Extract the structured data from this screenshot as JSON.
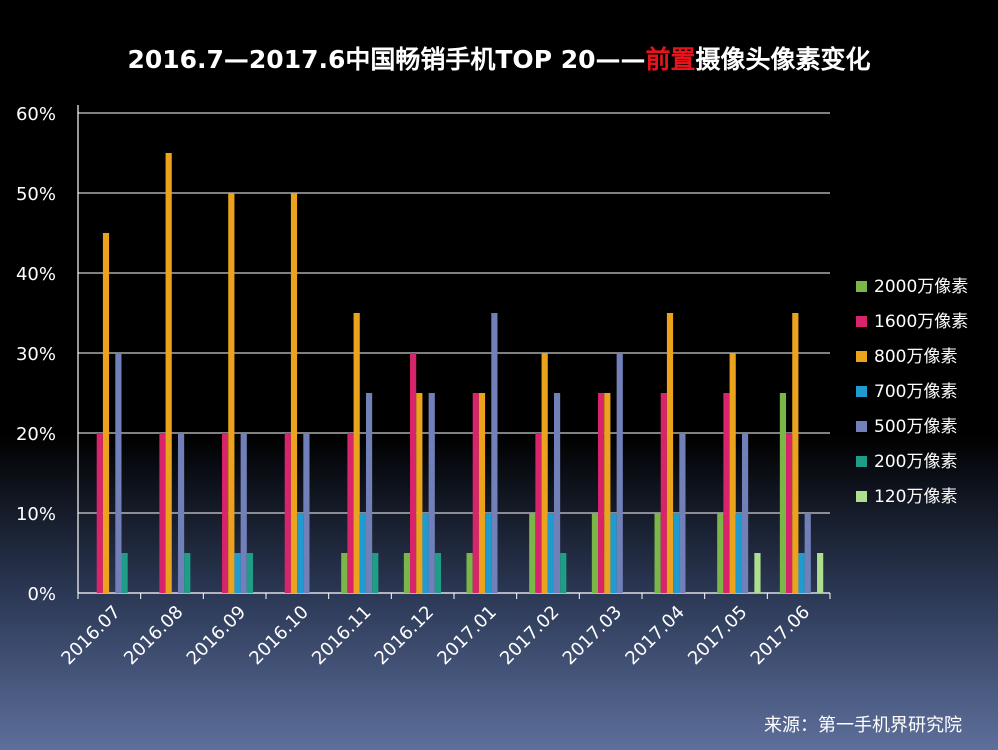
{
  "title": {
    "part1": "2016.7—2017.6中国畅销手机TOP 20——",
    "highlight": "前置",
    "part2": "摄像头像素变化",
    "highlight_color": "#e8141c"
  },
  "source": "来源：第一手机界研究院",
  "chart_data": {
    "type": "bar",
    "categories": [
      "2016.07",
      "2016.08",
      "2016.09",
      "2016.10",
      "2016.11",
      "2016.12",
      "2017.01",
      "2017.02",
      "2017.03",
      "2017.04",
      "2017.05",
      "2017.06"
    ],
    "y_ticks": [
      "0%",
      "10%",
      "20%",
      "30%",
      "40%",
      "50%",
      "60%"
    ],
    "ylim": [
      0,
      60
    ],
    "grid": true,
    "legend_position": "right",
    "series": [
      {
        "name": "2000万像素",
        "color": "#7ab648",
        "values": [
          0,
          0,
          0,
          0,
          5,
          5,
          5,
          10,
          10,
          10,
          10,
          25
        ]
      },
      {
        "name": "1600万像素",
        "color": "#d8246a",
        "values": [
          20,
          20,
          20,
          20,
          20,
          30,
          25,
          20,
          25,
          25,
          25,
          20
        ]
      },
      {
        "name": "800万像素",
        "color": "#eba21c",
        "values": [
          45,
          55,
          50,
          50,
          35,
          25,
          25,
          30,
          25,
          35,
          30,
          35
        ]
      },
      {
        "name": "700万像素",
        "color": "#1f9bcf",
        "values": [
          0,
          0,
          5,
          10,
          10,
          10,
          10,
          10,
          10,
          10,
          10,
          5
        ]
      },
      {
        "name": "500万像素",
        "color": "#7180b8",
        "values": [
          30,
          20,
          20,
          20,
          25,
          25,
          35,
          25,
          30,
          20,
          20,
          10
        ]
      },
      {
        "name": "200万像素",
        "color": "#1e9e86",
        "values": [
          5,
          5,
          5,
          0,
          5,
          5,
          0,
          5,
          0,
          0,
          0,
          0
        ]
      },
      {
        "name": "120万像素",
        "color": "#aedf8e",
        "values": [
          0,
          0,
          0,
          0,
          0,
          0,
          0,
          0,
          0,
          0,
          5,
          5
        ]
      }
    ]
  }
}
